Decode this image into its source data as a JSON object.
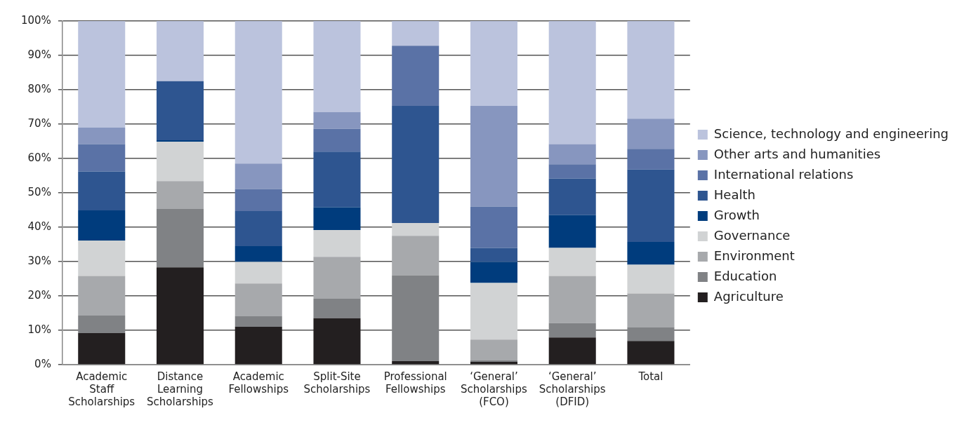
{
  "chart_data": {
    "type": "bar",
    "stacked": true,
    "categories": [
      "Academic Staff Scholarships",
      "Distance Learning Scholarships",
      "Academic Fellowships",
      "Split-Site Scholarships",
      "Professional Fellowships",
      "‘General’ Scholarships (FCO)",
      "‘General’ Scholarships (DFID)",
      "Total"
    ],
    "series": [
      {
        "name": "Agriculture",
        "color": "#231f20",
        "values": [
          9.2,
          28.3,
          11.0,
          13.5,
          1.0,
          0.8,
          7.9,
          6.9
        ]
      },
      {
        "name": "Education",
        "color": "#808285",
        "values": [
          5.1,
          17.0,
          3.1,
          5.7,
          25.0,
          0.4,
          4.2,
          3.9
        ]
      },
      {
        "name": "Environment",
        "color": "#a7a9ac",
        "values": [
          11.5,
          8.1,
          9.5,
          12.2,
          11.5,
          6.1,
          13.7,
          9.9
        ]
      },
      {
        "name": "Governance",
        "color": "#d1d3d4",
        "values": [
          10.3,
          11.5,
          6.3,
          7.8,
          3.7,
          16.5,
          8.2,
          8.4
        ]
      },
      {
        "name": "Growth",
        "color": "#003c7d",
        "values": [
          8.8,
          0.4,
          4.6,
          6.6,
          0,
          6.1,
          9.5,
          6.6
        ]
      },
      {
        "name": "Health",
        "color": "#2e5590",
        "values": [
          11.3,
          17.2,
          10.2,
          16.2,
          34.1,
          4.1,
          10.7,
          21.1
        ]
      },
      {
        "name": "International relations",
        "color": "#5a72a6",
        "values": [
          8.0,
          0,
          6.4,
          6.6,
          17.5,
          12.0,
          4.1,
          6.0
        ]
      },
      {
        "name": "Other arts and humanities",
        "color": "#8796bf",
        "values": [
          4.8,
          0,
          7.4,
          4.9,
          0,
          29.3,
          5.9,
          8.8
        ]
      },
      {
        "name": "Science, technology and engineering",
        "color": "#bbc3dd",
        "values": [
          31.0,
          17.5,
          41.5,
          26.5,
          7.2,
          24.7,
          35.8,
          28.4
        ]
      }
    ],
    "ylim": [
      0,
      100
    ],
    "yticks": [
      {
        "value": 0,
        "label": "0%"
      },
      {
        "value": 10,
        "label": "10%"
      },
      {
        "value": 20,
        "label": "20%"
      },
      {
        "value": 30,
        "label": "30%"
      },
      {
        "value": 40,
        "label": "40%"
      },
      {
        "value": 50,
        "label": "50%"
      },
      {
        "value": 60,
        "label": "60%"
      },
      {
        "value": 70,
        "label": "70%"
      },
      {
        "value": 80,
        "label": "80%"
      },
      {
        "value": 90,
        "label": "90%"
      },
      {
        "value": 100,
        "label": "100%"
      }
    ],
    "grid": "y",
    "legend": "right"
  }
}
